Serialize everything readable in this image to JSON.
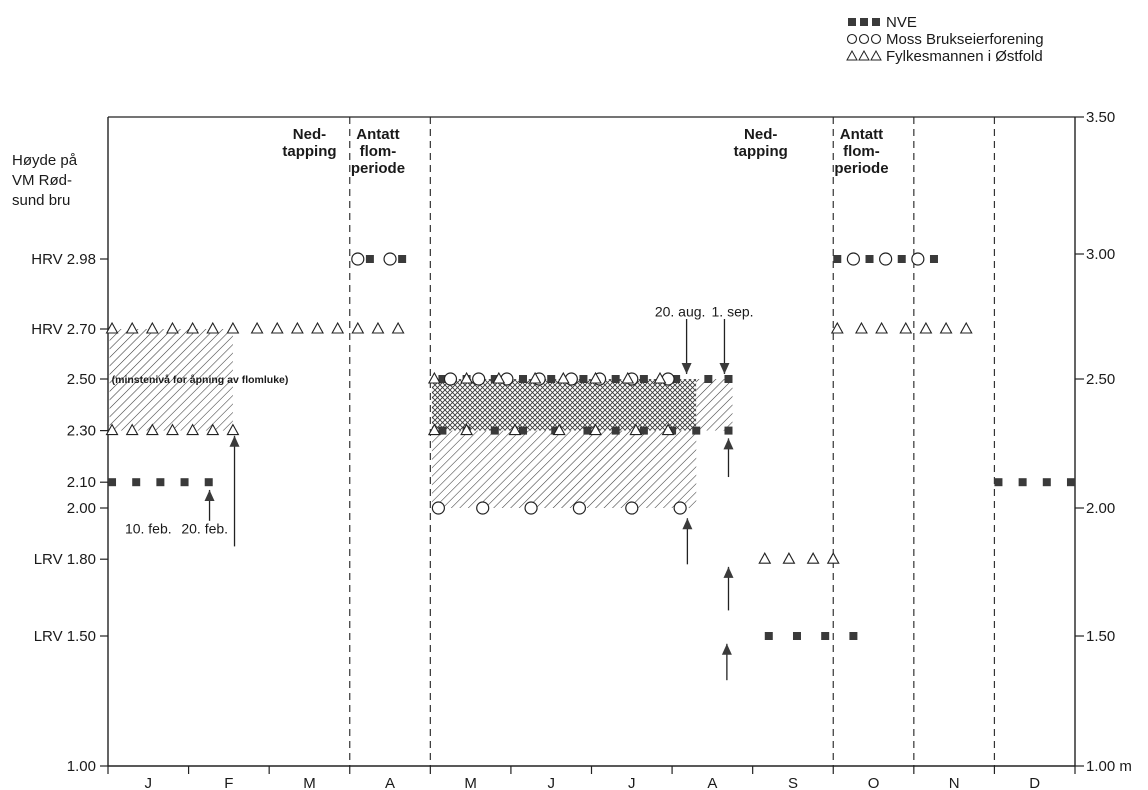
{
  "legend": [
    {
      "symbol": "square",
      "label": "NVE"
    },
    {
      "symbol": "circle",
      "label": "Moss Brukseierforening"
    },
    {
      "symbol": "triangle",
      "label": "Fylkesmannen i Østfold"
    }
  ],
  "left_axis_title": [
    "Høyde på",
    "VM Rød-",
    "sund bru"
  ],
  "left_ticks": [
    {
      "label": "HRV 2.98",
      "value": 2.98
    },
    {
      "label": "HRV 2.70",
      "value": 2.7
    },
    {
      "label": "2.50",
      "value": 2.5
    },
    {
      "label": "2.30",
      "value": 2.3
    },
    {
      "label": "2.10",
      "value": 2.1
    },
    {
      "label": "2.00",
      "value": 2.0
    },
    {
      "label": "LRV 1.80",
      "value": 1.8
    },
    {
      "label": "LRV 1.50",
      "value": 1.5
    },
    {
      "label": "1.00",
      "value": 1.0
    }
  ],
  "right_ticks": [
    {
      "label": "3.50",
      "value": 3.5
    },
    {
      "label": "3.00",
      "value": 3.0
    },
    {
      "label": "2.50",
      "value": 2.5
    },
    {
      "label": "2.00",
      "value": 2.0
    },
    {
      "label": "1.50",
      "value": 1.5
    },
    {
      "label": "1.00 m",
      "value": 1.0
    }
  ],
  "months": [
    "J",
    "F",
    "M",
    "A",
    "M",
    "J",
    "J",
    "A",
    "S",
    "O",
    "N",
    "D"
  ],
  "period_labels": [
    {
      "lines": [
        "Ned-",
        "tapping"
      ],
      "month": 2.5
    },
    {
      "lines": [
        "Antatt",
        "flom-",
        "periode"
      ],
      "month": 3.35
    },
    {
      "lines": [
        "Ned-",
        "tapping"
      ],
      "month": 8.1
    },
    {
      "lines": [
        "Antatt",
        "flom-",
        "periode"
      ],
      "month": 9.35
    }
  ],
  "annotations": [
    {
      "text": "(minstenivå for åpning av flomluke)",
      "month": 0.02,
      "value": 2.5
    },
    {
      "text": "10. feb.",
      "month": 0.5,
      "value": 1.9
    },
    {
      "text": "20. feb.",
      "month": 1.2,
      "value": 1.9
    },
    {
      "text": "20. aug.",
      "month": 7.1,
      "value": 2.75
    },
    {
      "text": "1. sep.",
      "month": 7.75,
      "value": 2.75
    }
  ],
  "chart_data": {
    "type": "scatter",
    "title": "",
    "xlabel": "",
    "ylabel": "Høyde på VM Rødsund bru",
    "x_unit": "month",
    "xlim": [
      0,
      12
    ],
    "ylim": [
      1.0,
      3.5
    ],
    "month_boundaries_dashed": [
      3,
      4,
      9,
      10,
      11
    ],
    "month_boundaries_solid": [],
    "series": [
      {
        "name": "NVE",
        "marker": "square",
        "color": "#2b2b2b",
        "segments": [
          {
            "x": [
              0.05,
              0.35,
              0.65,
              0.95,
              1.25
            ],
            "y": 2.1
          },
          {
            "x": [
              3.25,
              3.65
            ],
            "y": 2.98
          },
          {
            "x": [
              4.15,
              4.45,
              4.8,
              5.15,
              5.5,
              5.9,
              6.3,
              6.65,
              7.05,
              7.45,
              7.7
            ],
            "y": 2.5
          },
          {
            "x": [
              4.15,
              4.45,
              4.8,
              5.15,
              5.55,
              5.95,
              6.3,
              6.65,
              7.0,
              7.3,
              7.7
            ],
            "y": 2.3
          },
          {
            "x": [
              8.2,
              8.55,
              8.9,
              9.25
            ],
            "y": 1.5
          },
          {
            "x": [
              9.05,
              9.45,
              9.85,
              10.25
            ],
            "y": 2.98
          },
          {
            "x": [
              11.05,
              11.35,
              11.65,
              11.95
            ],
            "y": 2.1
          }
        ]
      },
      {
        "name": "Moss Brukseierforening",
        "marker": "circle",
        "color": "#2b2b2b",
        "segments": [
          {
            "x": [
              3.1,
              3.5
            ],
            "y": 2.98
          },
          {
            "x": [
              4.25,
              4.6,
              4.95,
              5.35,
              5.75,
              6.1,
              6.5,
              6.95
            ],
            "y": 2.5
          },
          {
            "x": [
              4.1,
              4.65,
              5.25,
              5.85,
              6.5,
              7.1
            ],
            "y": 2.0
          },
          {
            "x": [
              9.25,
              9.65,
              10.05
            ],
            "y": 2.98
          }
        ]
      },
      {
        "name": "Fylkesmannen i Østfold",
        "marker": "triangle",
        "color": "#2b2b2b",
        "segments": [
          {
            "x": [
              0.05,
              0.3,
              0.55,
              0.8,
              1.05,
              1.3,
              1.55,
              1.85,
              2.1,
              2.35,
              2.6,
              2.85,
              3.1,
              3.35,
              3.6
            ],
            "y": 2.7
          },
          {
            "x": [
              0.05,
              0.3,
              0.55,
              0.8,
              1.05,
              1.3,
              1.55
            ],
            "y": 2.3
          },
          {
            "x": [
              4.05,
              4.45,
              4.85,
              5.3,
              5.65,
              6.05,
              6.45,
              6.85
            ],
            "y": 2.5
          },
          {
            "x": [
              4.05,
              4.45,
              5.05,
              5.6,
              6.05,
              6.55,
              6.95
            ],
            "y": 2.3
          },
          {
            "x": [
              8.15,
              8.45,
              8.75,
              9.0
            ],
            "y": 1.8
          },
          {
            "x": [
              9.05,
              9.35,
              9.6,
              9.9,
              10.15,
              10.4,
              10.65
            ],
            "y": 2.7
          }
        ]
      }
    ],
    "hatched_bands": [
      {
        "x": [
          0.02,
          1.55
        ],
        "y": [
          2.3,
          2.7
        ],
        "pattern": "diagonal"
      },
      {
        "x": [
          4.02,
          7.3
        ],
        "y": [
          2.3,
          2.5
        ],
        "pattern": "crosshatch"
      },
      {
        "x": [
          7.3,
          7.75
        ],
        "y": [
          2.3,
          2.5
        ],
        "pattern": "diagonal"
      },
      {
        "x": [
          4.02,
          7.3
        ],
        "y": [
          2.0,
          2.3
        ],
        "pattern": "diagonal"
      }
    ],
    "arrows": [
      {
        "x": 1.26,
        "from": 1.95,
        "to": 2.07
      },
      {
        "x": 1.57,
        "from": 1.85,
        "to": 2.28
      },
      {
        "x": 7.18,
        "from": 2.74,
        "to": 2.52
      },
      {
        "x": 7.65,
        "from": 2.74,
        "to": 2.52
      },
      {
        "x": 7.19,
        "from": 1.78,
        "to": 1.96
      },
      {
        "x": 7.7,
        "from": 2.12,
        "to": 2.27
      },
      {
        "x": 7.7,
        "from": 1.6,
        "to": 1.77
      },
      {
        "x": 7.68,
        "from": 1.33,
        "to": 1.47
      }
    ]
  }
}
